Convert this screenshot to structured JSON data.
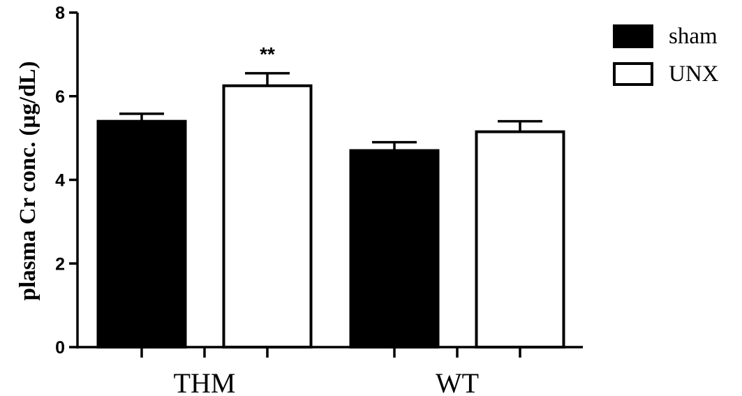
{
  "chart_data": {
    "type": "bar",
    "categories": [
      "THM",
      "WT"
    ],
    "series": [
      {
        "name": "sham",
        "values": [
          5.4,
          4.7
        ],
        "errors": [
          0.18,
          0.2
        ],
        "color": "#000000"
      },
      {
        "name": "UNX",
        "values": [
          6.25,
          5.15
        ],
        "errors": [
          0.3,
          0.25
        ],
        "color": "#ffffff"
      }
    ],
    "ylabel": "plasma Cr conc. (µg/dL)",
    "xlabel": "",
    "ylim": [
      0,
      8
    ],
    "yticks": [
      0,
      2,
      4,
      6,
      8
    ],
    "legend_position": "top-right",
    "annotations": [
      {
        "category": "THM",
        "series": "UNX",
        "text": "**"
      }
    ]
  }
}
